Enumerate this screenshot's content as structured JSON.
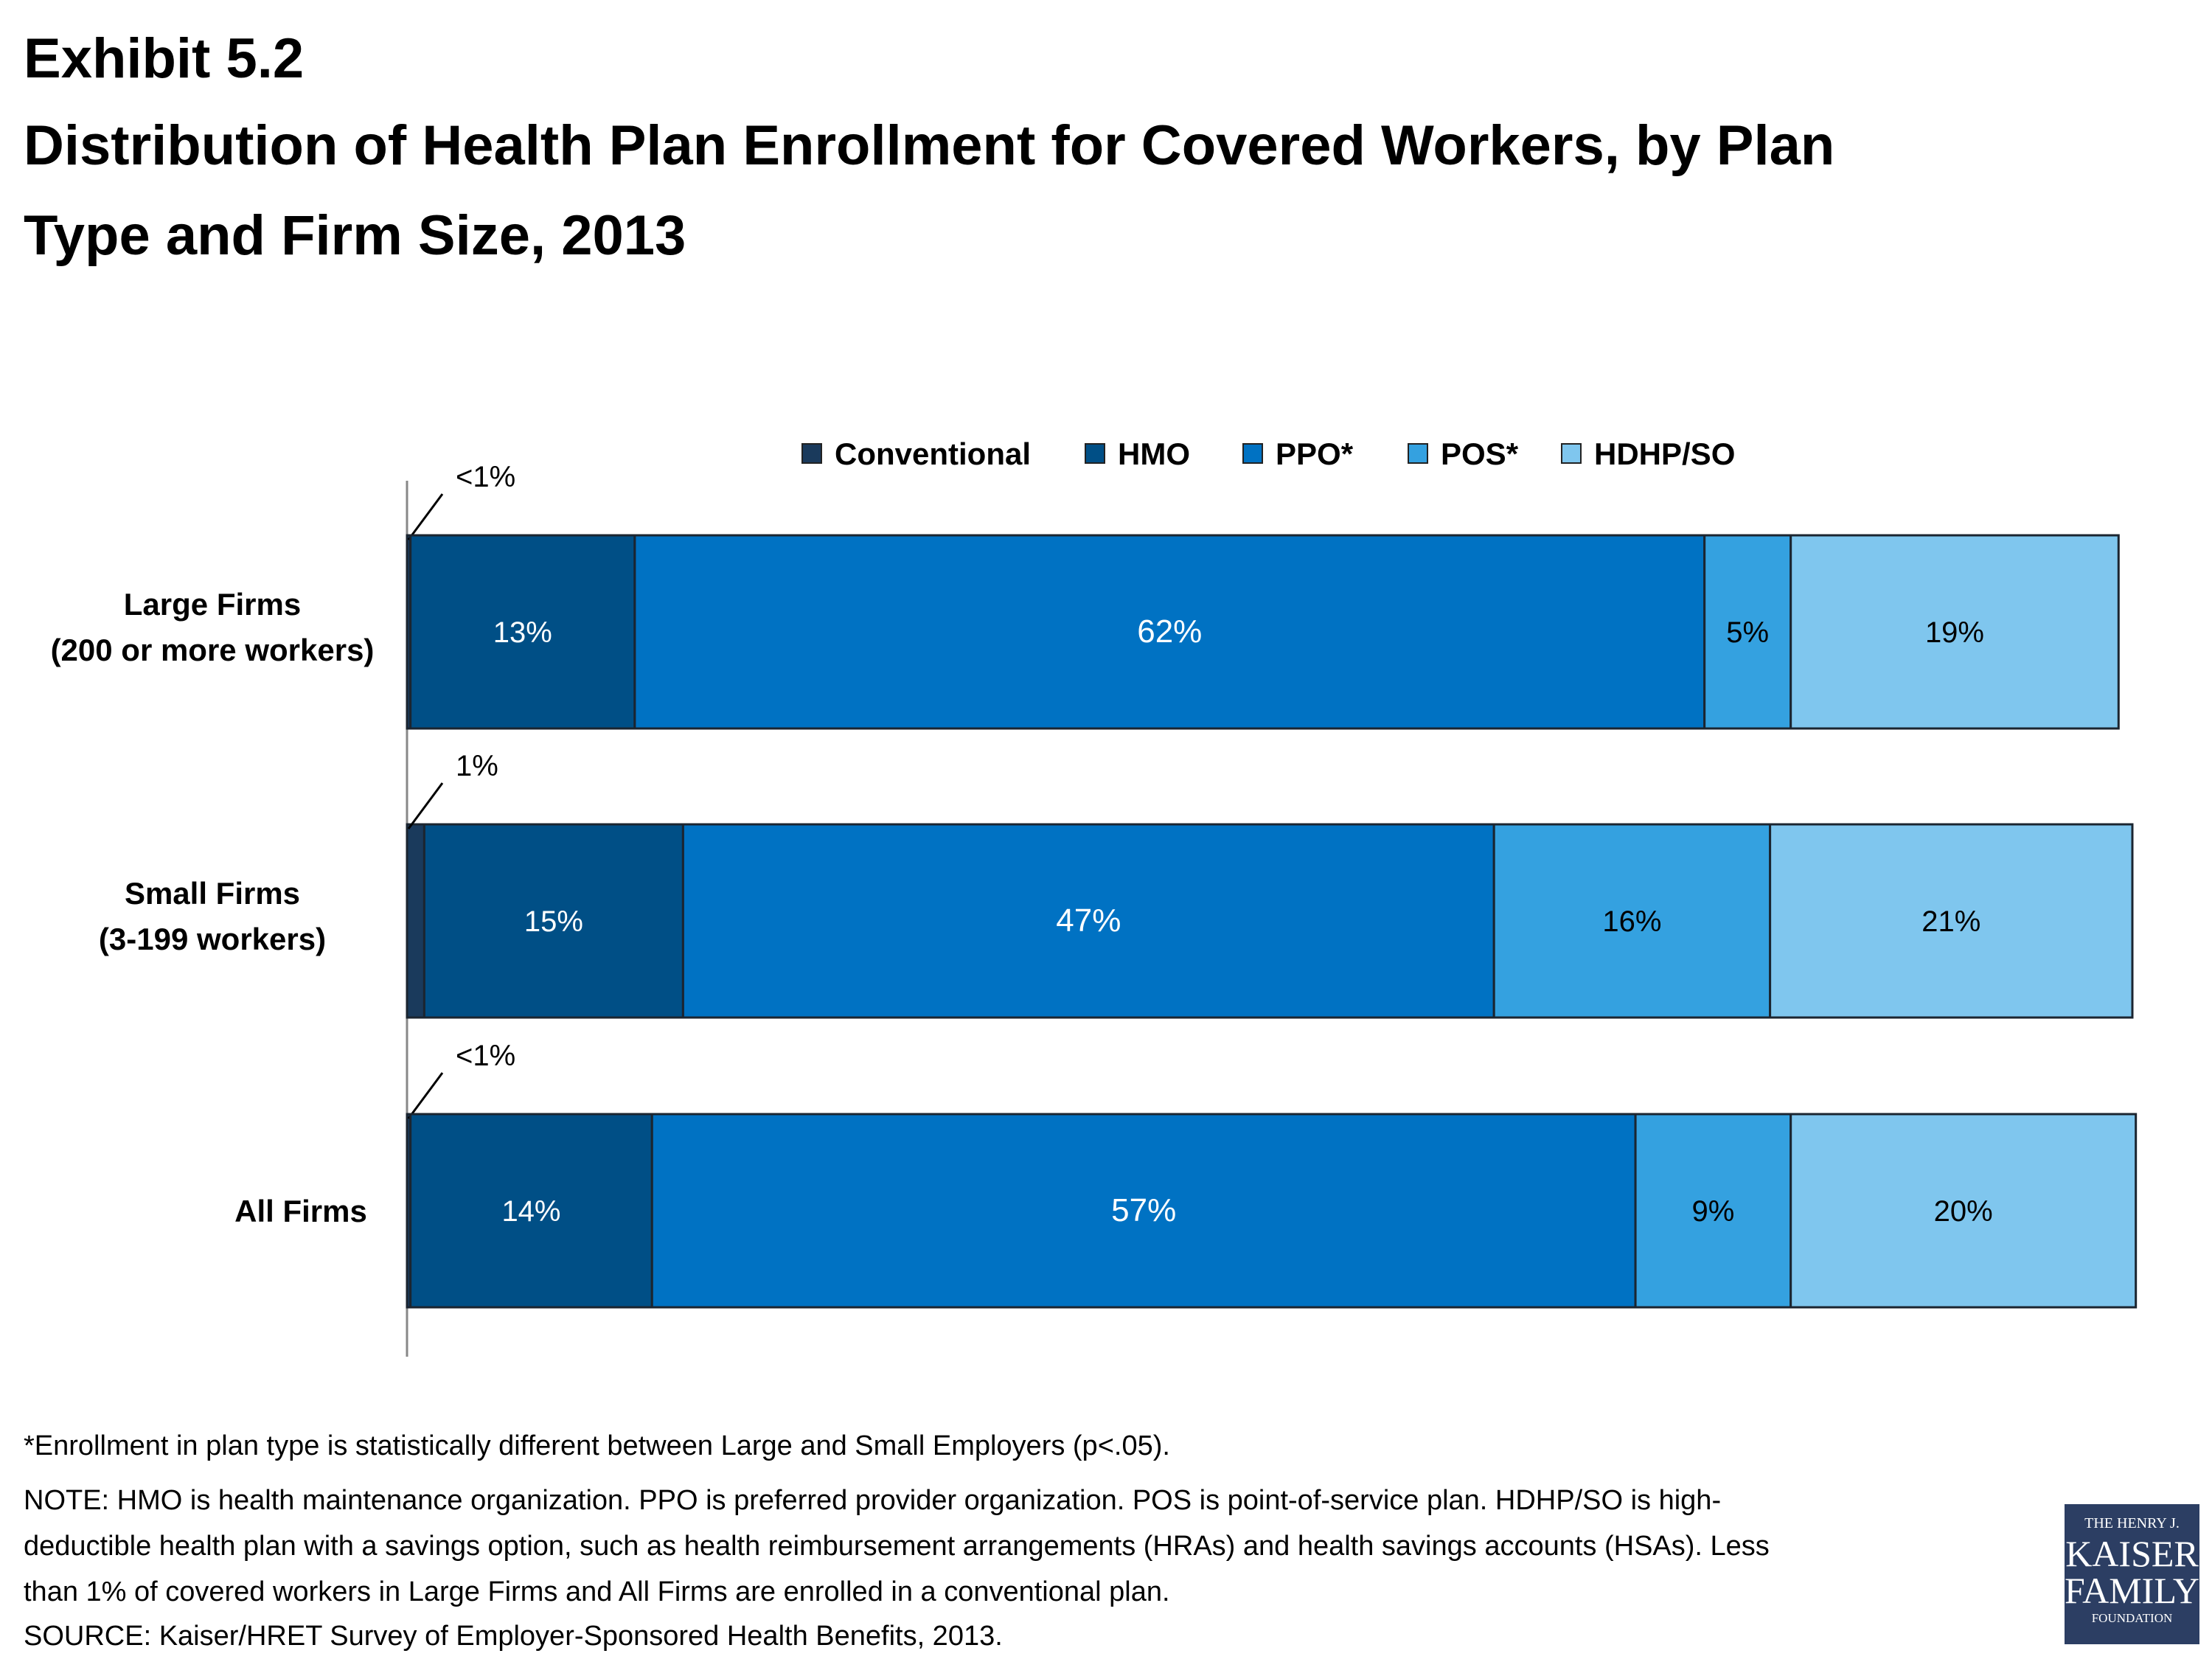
{
  "title": {
    "line1": "Exhibit 5.2",
    "line2": "Distribution of Health Plan Enrollment for Covered Workers, by Plan",
    "line3": "Type and Firm Size, 2013"
  },
  "chart_data": {
    "type": "bar",
    "orientation": "horizontal",
    "stacked": true,
    "categories": [
      [
        "Large Firms",
        "(200 or more workers)"
      ],
      [
        "Small Firms",
        "(3-199 workers)"
      ],
      [
        "All Firms"
      ]
    ],
    "series": [
      {
        "name": "Conventional",
        "color": "#1a3a5c",
        "values": [
          0.2,
          1,
          0.2
        ],
        "labels": [
          "<1%",
          "1%",
          "<1%"
        ]
      },
      {
        "name": "HMO",
        "color": "#004f86",
        "values": [
          13,
          15,
          14
        ],
        "labels": [
          "13%",
          "15%",
          "14%"
        ]
      },
      {
        "name": "PPO*",
        "color": "#0072c3",
        "values": [
          62,
          47,
          57
        ],
        "labels": [
          "62%",
          "47%",
          "57%"
        ]
      },
      {
        "name": "POS*",
        "color": "#34a1e0",
        "values": [
          5,
          16,
          9
        ],
        "labels": [
          "5%",
          "16%",
          "9%"
        ]
      },
      {
        "name": "HDHP/SO",
        "color": "#7fc6ee",
        "values": [
          19,
          21,
          20
        ],
        "labels": [
          "19%",
          "21%",
          "20%"
        ]
      }
    ],
    "xlim": [
      0,
      100
    ],
    "legend_position": "top",
    "grid": false
  },
  "notes": {
    "footnote": "*Enrollment in plan type is statistically different between Large and Small Employers (p<.05).",
    "note_line1": "NOTE: HMO is health maintenance organization. PPO is preferred provider organization. POS is point-of-service plan. HDHP/SO is high-",
    "note_line2": "deductible health plan with a savings option, such as health reimbursement arrangements (HRAs) and health savings accounts (HSAs).  Less",
    "note_line3": "than 1% of covered workers in Large Firms and All Firms are enrolled in a conventional plan.",
    "source": "SOURCE:  Kaiser/HRET Survey of Employer-Sponsored Health Benefits, 2013."
  },
  "logo": {
    "line1": "THE HENRY J.",
    "line2": "KAISER",
    "line3": "FAMILY",
    "line4": "FOUNDATION"
  }
}
